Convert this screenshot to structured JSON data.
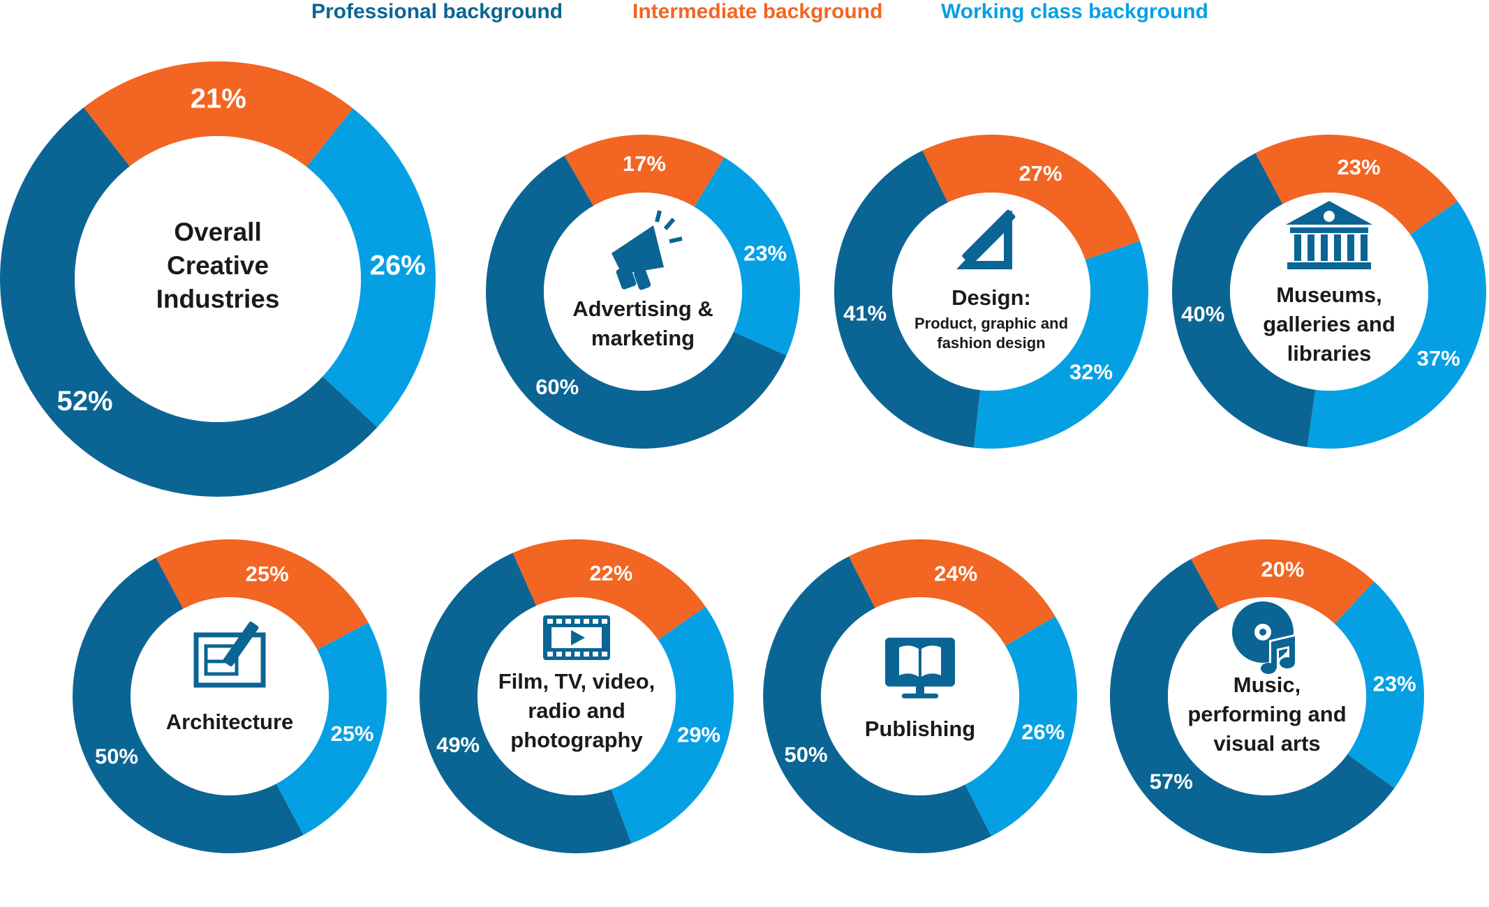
{
  "legend": {
    "professional": "Professional background",
    "intermediate": "Intermediate background",
    "working": "Working class background"
  },
  "colors": {
    "professional": "#0b6594",
    "intermediate": "#f26522",
    "working": "#05a0e4",
    "center": "#ffffff",
    "icon": "#0b6594"
  },
  "chart_data": {
    "type": "pie",
    "variant": "donut",
    "series_order": [
      "Intermediate background",
      "Working class background",
      "Professional background"
    ],
    "charts": [
      {
        "id": "overall",
        "title_lines": [
          "Overall",
          "Creative",
          "Industries"
        ],
        "subtitle_lines": [],
        "icon": "",
        "values": {
          "intermediate": 21,
          "working": 26,
          "professional": 52
        },
        "labels": {
          "intermediate": "21%",
          "working": "26%",
          "professional": "52%"
        }
      },
      {
        "id": "advertising",
        "title_lines": [
          "Advertising &",
          "marketing"
        ],
        "subtitle_lines": [],
        "icon": "megaphone-icon",
        "values": {
          "intermediate": 17,
          "working": 23,
          "professional": 60
        },
        "labels": {
          "intermediate": "17%",
          "working": "23%",
          "professional": "60%"
        }
      },
      {
        "id": "design",
        "title_lines": [
          "Design:"
        ],
        "subtitle_lines": [
          "Product, graphic and",
          "fashion design"
        ],
        "icon": "design-tools-icon",
        "values": {
          "intermediate": 27,
          "working": 32,
          "professional": 41
        },
        "labels": {
          "intermediate": "27%",
          "working": "32%",
          "professional": "41%"
        }
      },
      {
        "id": "museums",
        "title_lines": [
          "Museums,",
          "galleries and",
          "libraries"
        ],
        "subtitle_lines": [],
        "icon": "museum-icon",
        "values": {
          "intermediate": 23,
          "working": 37,
          "professional": 40
        },
        "labels": {
          "intermediate": "23%",
          "working": "37%",
          "professional": "40%"
        }
      },
      {
        "id": "architecture",
        "title_lines": [
          "Architecture"
        ],
        "subtitle_lines": [],
        "icon": "blueprint-icon",
        "values": {
          "intermediate": 25,
          "working": 25,
          "professional": 50
        },
        "labels": {
          "intermediate": "25%",
          "working": "25%",
          "professional": "50%"
        }
      },
      {
        "id": "film",
        "title_lines": [
          "Film, TV, video,",
          "radio and",
          "photography"
        ],
        "subtitle_lines": [],
        "icon": "film-strip-icon",
        "values": {
          "intermediate": 22,
          "working": 29,
          "professional": 49
        },
        "labels": {
          "intermediate": "22%",
          "working": "29%",
          "professional": "49%"
        }
      },
      {
        "id": "publishing",
        "title_lines": [
          "Publishing"
        ],
        "subtitle_lines": [],
        "icon": "book-monitor-icon",
        "values": {
          "intermediate": 24,
          "working": 26,
          "professional": 50
        },
        "labels": {
          "intermediate": "24%",
          "working": "26%",
          "professional": "50%"
        }
      },
      {
        "id": "music",
        "title_lines": [
          "Music,",
          "performing and",
          "visual arts"
        ],
        "subtitle_lines": [],
        "icon": "music-disc-icon",
        "values": {
          "intermediate": 20,
          "working": 23,
          "professional": 57
        },
        "labels": {
          "intermediate": "20%",
          "working": "23%",
          "professional": "57%"
        }
      }
    ]
  }
}
